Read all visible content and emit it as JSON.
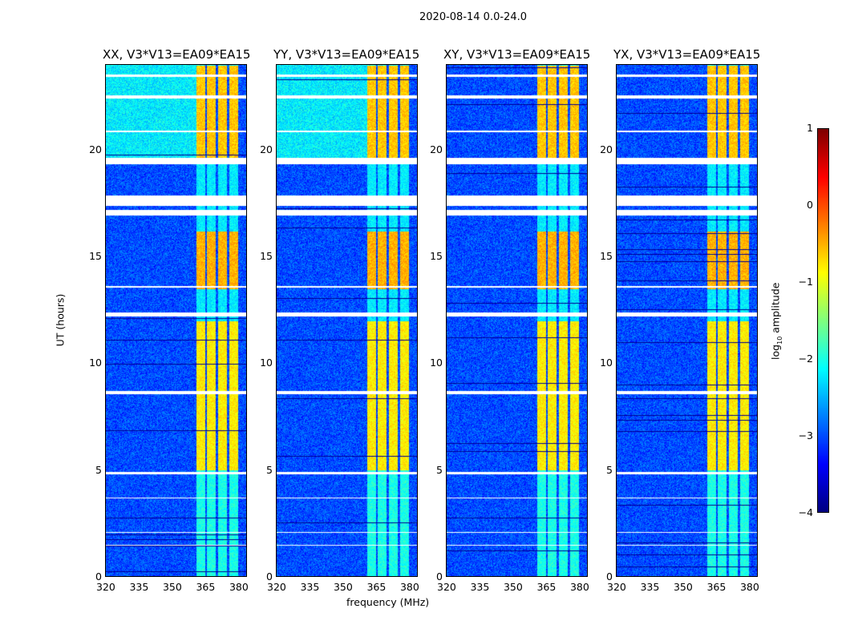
{
  "chart_data": {
    "type": "heatmap",
    "title": "2020-08-14 0.0-24.0",
    "xlabel": "frequency (MHz)",
    "ylabel": "UT (hours)",
    "xlim": [
      320,
      384
    ],
    "ylim": [
      0,
      24
    ],
    "xticks": [
      "320",
      "335",
      "350",
      "365",
      "380"
    ],
    "xtick_values": [
      320,
      335,
      350,
      365,
      380
    ],
    "yticks": [
      "0",
      "5",
      "10",
      "15",
      "20"
    ],
    "ytick_values": [
      0,
      5,
      10,
      15,
      20
    ],
    "panels": [
      {
        "title": "XX, V3*V13=EA09*EA15",
        "top_background": -2.2
      },
      {
        "title": "YY, V3*V13=EA09*EA15",
        "top_background": -2.2
      },
      {
        "title": "XY, V3*V13=EA09*EA15",
        "top_background": -3.0
      },
      {
        "title": "YX, V3*V13=EA09*EA15",
        "top_background": -3.0
      }
    ],
    "background_level": -3.0,
    "rfi_subbands_mhz": [
      [
        361,
        365
      ],
      [
        366,
        370
      ],
      [
        371,
        375
      ],
      [
        376,
        380
      ]
    ],
    "rfi_level_by_ut": [
      {
        "ut": [
          19.5,
          24
        ],
        "level": -0.6
      },
      {
        "ut": [
          13.5,
          16.2
        ],
        "level": -0.5
      },
      {
        "ut": [
          5,
          12
        ],
        "level": -0.8
      },
      {
        "ut": [
          0,
          5
        ],
        "level": -2.0
      },
      {
        "ut": [
          16.2,
          19.5
        ],
        "level": -2.2
      }
    ],
    "flagged_ut": [
      [
        23.45,
        23.55
      ],
      [
        22.45,
        22.6
      ],
      [
        20.85,
        20.92
      ],
      [
        19.35,
        19.65
      ],
      [
        17.4,
        17.9
      ],
      [
        16.95,
        17.2
      ],
      [
        13.55,
        13.65
      ],
      [
        12.2,
        12.4
      ],
      [
        8.55,
        8.7
      ],
      [
        4.78,
        4.9
      ],
      [
        3.65,
        3.72
      ],
      [
        2.05,
        2.1
      ],
      [
        1.45,
        1.5
      ]
    ],
    "colorbar": {
      "label": "log10 amplitude",
      "label_main": "log",
      "label_sub": "10",
      "label_rest": " amplitude",
      "range": [
        -4,
        1
      ],
      "ticks": [
        "1",
        "0",
        "−1",
        "−2",
        "−3",
        "−4"
      ],
      "tick_values": [
        1,
        0,
        -1,
        -2,
        -3,
        -4
      ],
      "colormap": "jet"
    }
  }
}
